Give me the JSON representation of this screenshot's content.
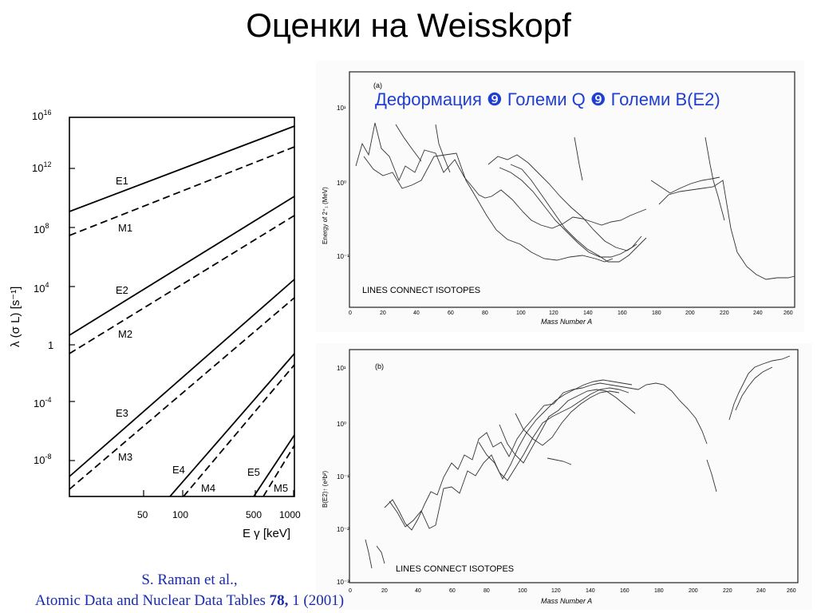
{
  "slide": {
    "title": "Оценки на Weisskopf",
    "overlay": "Деформация ❾ Големи Q ❾ Големи B(E2)",
    "citation_line1": "S. Raman et al.,",
    "citation_line2_pre": "Atomic Data and Nuclear Data Tables ",
    "citation_volume": "78,",
    "citation_line2_post": " 1 (2001)"
  },
  "left_chart": {
    "y_ticks_mantissa": [
      "10",
      "10",
      "10",
      "10",
      "1",
      "10",
      "10"
    ],
    "y_ticks_exp": [
      "16",
      "12",
      "8",
      "4",
      "",
      "-4",
      "-8"
    ],
    "y_label": "λ (σ L) [s⁻¹]",
    "x_ticks": [
      "50",
      "100",
      "500",
      "1000"
    ],
    "x_label": "E γ [keV]",
    "curve_labels": [
      "E1",
      "M1",
      "E2",
      "M2",
      "E3",
      "M3",
      "E4",
      "M4",
      "E5",
      "M5"
    ]
  },
  "panel_a": {
    "tag": "(a)",
    "legend": "LINES CONNECT ISOTOPES",
    "x_label": "Mass Number A",
    "y_label": "Energy of 2⁺₁ (MeV)",
    "x_ticks": [
      "0",
      "20",
      "40",
      "60",
      "80",
      "100",
      "120",
      "140",
      "160",
      "180",
      "200",
      "220",
      "240",
      "260"
    ],
    "y_ticks": [
      "10¹",
      "10⁰",
      "10⁻¹"
    ]
  },
  "panel_b": {
    "tag": "(b)",
    "legend": "LINES CONNECT ISOTOPES",
    "x_label": "Mass Number A",
    "y_label": "B(E2)↑ (e²b²)",
    "x_ticks": [
      "0",
      "20",
      "40",
      "60",
      "80",
      "100",
      "120",
      "140",
      "160",
      "180",
      "200",
      "220",
      "240",
      "260"
    ],
    "y_ticks": [
      "10¹",
      "10⁰",
      "10⁻¹",
      "10⁻²",
      "10⁻³"
    ]
  }
}
